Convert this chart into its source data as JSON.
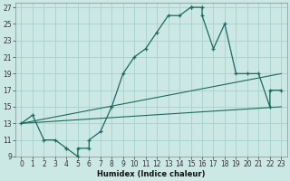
{
  "xlabel": "Humidex (Indice chaleur)",
  "bg_color": "#cce8e5",
  "grid_color": "#aad4d0",
  "line_color": "#1a6b5e",
  "xlim": [
    -0.5,
    23.5
  ],
  "ylim": [
    9,
    27.5
  ],
  "xtick_labels": [
    "0",
    "1",
    "2",
    "3",
    "4",
    "5",
    "6",
    "7",
    "8",
    "9",
    "10",
    "11",
    "12",
    "13",
    "14",
    "15",
    "16",
    "17",
    "18",
    "19",
    "20",
    "21",
    "22",
    "23"
  ],
  "xtick_vals": [
    0,
    1,
    2,
    3,
    4,
    5,
    6,
    7,
    8,
    9,
    10,
    11,
    12,
    13,
    14,
    15,
    16,
    17,
    18,
    19,
    20,
    21,
    22,
    23
  ],
  "ytick_vals": [
    9,
    11,
    13,
    15,
    17,
    19,
    21,
    23,
    25,
    27
  ],
  "curve1_x": [
    0,
    1,
    2,
    3,
    4,
    4,
    5,
    5,
    6,
    6,
    7,
    8,
    9,
    10,
    11,
    12,
    13,
    14,
    15,
    15,
    16,
    16,
    17,
    18,
    19,
    20,
    21,
    22,
    22,
    23
  ],
  "curve1_y": [
    13,
    14,
    11,
    11,
    10,
    10,
    9,
    10,
    10,
    11,
    12,
    15,
    19,
    21,
    22,
    24,
    26,
    26,
    27,
    27,
    27,
    26,
    22,
    25,
    19,
    19,
    19,
    15,
    17,
    17
  ],
  "curve2_x": [
    0,
    23
  ],
  "curve2_y": [
    13,
    15
  ],
  "curve3_x": [
    0,
    23
  ],
  "curve3_y": [
    13,
    19
  ],
  "xlabel_fontsize": 6,
  "tick_fontsize": 5.5
}
